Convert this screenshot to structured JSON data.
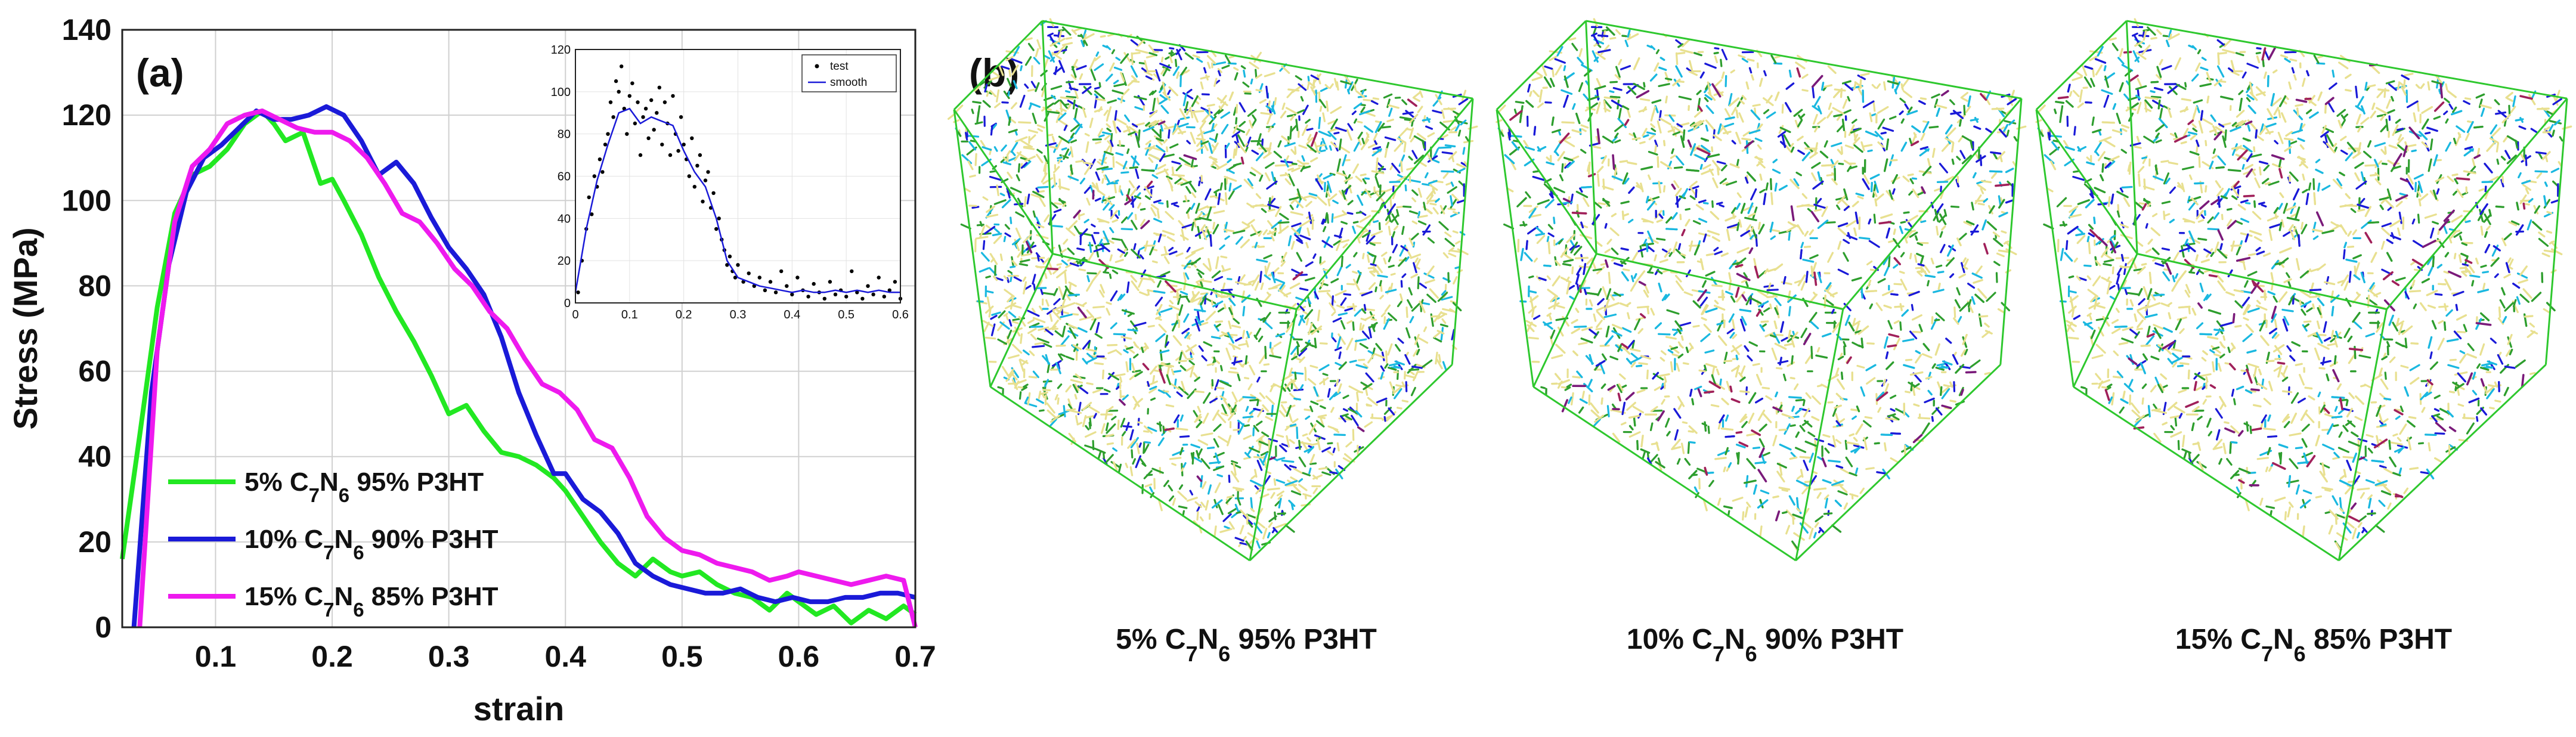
{
  "panel_a_label": "(a)",
  "panel_b_label": "(b)",
  "chart_data": [
    {
      "type": "line",
      "xlabel": "strain",
      "ylabel": "Stress (MPa)",
      "xlim": [
        0.02,
        0.7
      ],
      "ylim": [
        0,
        140
      ],
      "xticks": [
        "0.1",
        "0.2",
        "0.3",
        "0.4",
        "0.5",
        "0.6",
        "0.7"
      ],
      "yticks": [
        "0",
        "20",
        "40",
        "60",
        "80",
        "100",
        "120",
        "140"
      ],
      "grid": true,
      "legend_position": "bottom-left",
      "series": [
        {
          "name": "5% C7N6 95% P3HT",
          "legend_parts": [
            "5% C",
            "7",
            "N",
            "6",
            " 95% P3HT"
          ],
          "color": "#22e822",
          "x": [
            0.02,
            0.035,
            0.05,
            0.065,
            0.08,
            0.095,
            0.11,
            0.125,
            0.14,
            0.15,
            0.16,
            0.175,
            0.19,
            0.2,
            0.21,
            0.225,
            0.24,
            0.255,
            0.27,
            0.285,
            0.3,
            0.315,
            0.33,
            0.345,
            0.36,
            0.375,
            0.39,
            0.4,
            0.415,
            0.43,
            0.445,
            0.46,
            0.475,
            0.49,
            0.5,
            0.515,
            0.53,
            0.545,
            0.56,
            0.575,
            0.59,
            0.6,
            0.615,
            0.63,
            0.645,
            0.66,
            0.675,
            0.69,
            0.7
          ],
          "y": [
            16,
            45,
            75,
            97,
            106,
            108,
            112,
            118,
            121,
            118,
            114,
            116,
            104,
            105,
            100,
            92,
            82,
            74,
            67,
            59,
            50,
            52,
            46,
            41,
            40,
            38,
            35,
            32,
            26,
            20,
            15,
            12,
            16,
            13,
            12,
            13,
            10,
            8,
            7,
            4,
            8,
            6,
            3,
            5,
            1,
            4,
            2,
            5,
            3
          ]
        },
        {
          "name": "10% C7N6 90% P3HT",
          "legend_parts": [
            "10% C",
            "7",
            "N",
            "6",
            " 90% P3HT"
          ],
          "color": "#1a1ad8",
          "x": [
            0.03,
            0.045,
            0.06,
            0.075,
            0.09,
            0.105,
            0.12,
            0.135,
            0.15,
            0.165,
            0.18,
            0.195,
            0.21,
            0.225,
            0.24,
            0.255,
            0.27,
            0.285,
            0.3,
            0.315,
            0.33,
            0.345,
            0.36,
            0.375,
            0.39,
            0.4,
            0.415,
            0.43,
            0.445,
            0.46,
            0.475,
            0.49,
            0.505,
            0.52,
            0.535,
            0.55,
            0.565,
            0.58,
            0.595,
            0.61,
            0.625,
            0.64,
            0.655,
            0.67,
            0.685,
            0.7
          ],
          "y": [
            0,
            55,
            85,
            102,
            110,
            113,
            117,
            121,
            119,
            119,
            120,
            122,
            120,
            114,
            106,
            109,
            104,
            96,
            89,
            84,
            78,
            68,
            55,
            45,
            36,
            36,
            30,
            27,
            22,
            15,
            12,
            10,
            9,
            8,
            8,
            9,
            7,
            6,
            7,
            6,
            6,
            7,
            7,
            8,
            8,
            7
          ]
        },
        {
          "name": "15% C7N6 85% P3HT",
          "legend_parts": [
            "15% C",
            "7",
            "N",
            "6",
            " 85% P3HT"
          ],
          "color": "#ee1aee",
          "x": [
            0.035,
            0.05,
            0.065,
            0.08,
            0.095,
            0.11,
            0.125,
            0.14,
            0.155,
            0.17,
            0.185,
            0.2,
            0.215,
            0.23,
            0.245,
            0.26,
            0.275,
            0.29,
            0.305,
            0.32,
            0.335,
            0.35,
            0.365,
            0.38,
            0.395,
            0.41,
            0.425,
            0.44,
            0.455,
            0.47,
            0.485,
            0.5,
            0.515,
            0.53,
            0.545,
            0.56,
            0.575,
            0.59,
            0.6,
            0.615,
            0.63,
            0.645,
            0.66,
            0.675,
            0.69,
            0.7
          ],
          "y": [
            0,
            65,
            95,
            108,
            112,
            118,
            120,
            121,
            119,
            117,
            116,
            116,
            114,
            110,
            104,
            97,
            95,
            90,
            84,
            80,
            74,
            70,
            63,
            57,
            55,
            51,
            44,
            42,
            35,
            26,
            21,
            18,
            17,
            15,
            14,
            13,
            11,
            12,
            13,
            12,
            11,
            10,
            11,
            12,
            11,
            0
          ]
        }
      ]
    },
    {
      "type": "scatter",
      "placement": "inset of panel (a), top-right",
      "xlim": [
        0,
        0.6
      ],
      "ylim": [
        0,
        120
      ],
      "xticks": [
        "0",
        "0.1",
        "0.2",
        "0.3",
        "0.4",
        "0.5",
        "0.6"
      ],
      "yticks": [
        "0",
        "20",
        "40",
        "60",
        "80",
        "100",
        "120"
      ],
      "legend_position": "top-right",
      "series": [
        {
          "name": "test",
          "marker": "dot",
          "color": "#000000",
          "x": [
            0.005,
            0.012,
            0.02,
            0.025,
            0.03,
            0.035,
            0.04,
            0.045,
            0.05,
            0.055,
            0.06,
            0.065,
            0.07,
            0.075,
            0.08,
            0.085,
            0.09,
            0.095,
            0.1,
            0.105,
            0.11,
            0.115,
            0.12,
            0.125,
            0.13,
            0.135,
            0.14,
            0.145,
            0.15,
            0.155,
            0.16,
            0.165,
            0.17,
            0.175,
            0.18,
            0.185,
            0.19,
            0.195,
            0.2,
            0.205,
            0.21,
            0.215,
            0.22,
            0.225,
            0.23,
            0.235,
            0.24,
            0.245,
            0.25,
            0.255,
            0.26,
            0.265,
            0.27,
            0.275,
            0.28,
            0.285,
            0.29,
            0.295,
            0.3,
            0.31,
            0.32,
            0.33,
            0.34,
            0.35,
            0.36,
            0.37,
            0.38,
            0.39,
            0.4,
            0.41,
            0.42,
            0.43,
            0.44,
            0.45,
            0.46,
            0.47,
            0.48,
            0.49,
            0.5,
            0.51,
            0.52,
            0.53,
            0.54,
            0.55,
            0.56,
            0.57,
            0.58,
            0.59,
            0.6
          ],
          "y": [
            5,
            20,
            35,
            50,
            42,
            60,
            55,
            68,
            62,
            75,
            80,
            95,
            88,
            105,
            100,
            112,
            92,
            80,
            98,
            104,
            85,
            95,
            70,
            88,
            92,
            78,
            96,
            82,
            90,
            102,
            75,
            95,
            85,
            70,
            98,
            80,
            72,
            88,
            75,
            68,
            60,
            78,
            55,
            65,
            70,
            48,
            58,
            62,
            45,
            52,
            35,
            40,
            30,
            25,
            18,
            22,
            15,
            12,
            18,
            10,
            14,
            8,
            12,
            6,
            10,
            5,
            15,
            8,
            4,
            12,
            6,
            3,
            9,
            5,
            2,
            10,
            4,
            6,
            3,
            15,
            5,
            2,
            8,
            4,
            12,
            3,
            6,
            10,
            2
          ]
        },
        {
          "name": "smooth",
          "marker": "line",
          "color": "#1a1ad8",
          "x": [
            0,
            0.02,
            0.04,
            0.06,
            0.08,
            0.1,
            0.12,
            0.14,
            0.16,
            0.18,
            0.2,
            0.22,
            0.24,
            0.26,
            0.28,
            0.3,
            0.32,
            0.34,
            0.36,
            0.38,
            0.4,
            0.42,
            0.44,
            0.46,
            0.48,
            0.5,
            0.52,
            0.54,
            0.56,
            0.58,
            0.6
          ],
          "y": [
            5,
            35,
            58,
            75,
            90,
            92,
            85,
            88,
            86,
            84,
            72,
            62,
            55,
            40,
            20,
            12,
            10,
            8,
            7,
            6,
            5,
            6,
            5,
            5,
            6,
            5,
            6,
            5,
            6,
            5,
            5
          ]
        }
      ]
    }
  ],
  "structure_panels": [
    {
      "caption_parts": [
        "5% C",
        "7",
        "N",
        "6",
        " 95% P3HT"
      ],
      "accent_level": 0.15,
      "atom_colors": [
        "#e8e090",
        "#2e9e2e",
        "#1ab8e0",
        "#1a1ad8"
      ],
      "accent_colors": [
        "#a0205a",
        "#7a1a7a"
      ]
    },
    {
      "caption_parts": [
        "10% C",
        "7",
        "N",
        "6",
        " 90% P3HT"
      ],
      "accent_level": 0.45,
      "atom_colors": [
        "#e8e090",
        "#2e9e2e",
        "#1ab8e0",
        "#1a1ad8"
      ],
      "accent_colors": [
        "#a0205a",
        "#7a1a7a"
      ]
    },
    {
      "caption_parts": [
        "15% C",
        "7",
        "N",
        "6",
        " 85% P3HT"
      ],
      "accent_level": 0.6,
      "atom_colors": [
        "#e8e090",
        "#2e9e2e",
        "#1ab8e0",
        "#1a1ad8"
      ],
      "accent_colors": [
        "#a0205a",
        "#7a1a7a"
      ]
    }
  ],
  "colors": {
    "box_edge": "#2ec82e",
    "axis": "#222222",
    "grid": "#d0d0d0"
  }
}
